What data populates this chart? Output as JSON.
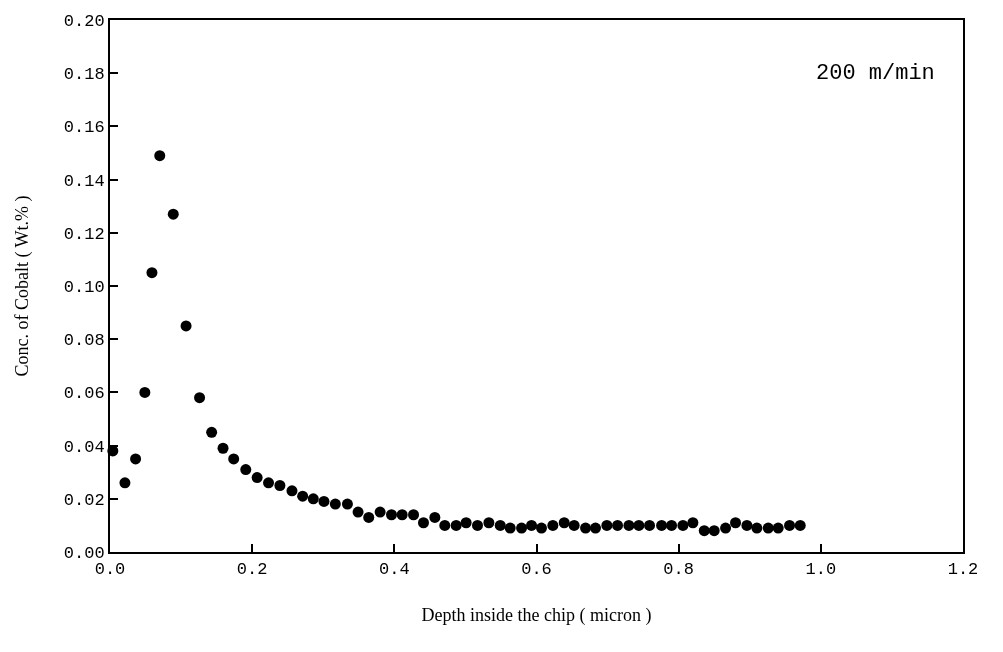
{
  "chart_data": {
    "type": "scatter",
    "xlabel": "Depth inside the chip ( micron )",
    "ylabel": "Conc. of Cobalt ( Wt.% )",
    "annotations": [
      "200 m/min"
    ],
    "x": [
      0.004,
      0.021,
      0.036,
      0.049,
      0.059,
      0.07,
      0.089,
      0.107,
      0.126,
      0.143,
      0.159,
      0.174,
      0.191,
      0.207,
      0.223,
      0.239,
      0.256,
      0.271,
      0.286,
      0.301,
      0.317,
      0.334,
      0.349,
      0.364,
      0.38,
      0.396,
      0.411,
      0.427,
      0.441,
      0.457,
      0.471,
      0.487,
      0.501,
      0.517,
      0.533,
      0.549,
      0.563,
      0.579,
      0.593,
      0.607,
      0.623,
      0.639,
      0.653,
      0.669,
      0.683,
      0.699,
      0.714,
      0.73,
      0.744,
      0.759,
      0.776,
      0.79,
      0.806,
      0.82,
      0.836,
      0.85,
      0.866,
      0.88,
      0.896,
      0.91,
      0.926,
      0.94,
      0.956,
      0.971
    ],
    "values": [
      0.038,
      0.026,
      0.035,
      0.06,
      0.105,
      0.149,
      0.127,
      0.085,
      0.058,
      0.045,
      0.039,
      0.035,
      0.031,
      0.028,
      0.026,
      0.025,
      0.023,
      0.021,
      0.02,
      0.019,
      0.018,
      0.018,
      0.015,
      0.013,
      0.015,
      0.014,
      0.014,
      0.014,
      0.011,
      0.013,
      0.01,
      0.01,
      0.011,
      0.01,
      0.011,
      0.01,
      0.009,
      0.009,
      0.01,
      0.009,
      0.01,
      0.011,
      0.01,
      0.009,
      0.009,
      0.01,
      0.01,
      0.01,
      0.01,
      0.01,
      0.01,
      0.01,
      0.01,
      0.011,
      0.008,
      0.008,
      0.009,
      0.011,
      0.01,
      0.009,
      0.009,
      0.009,
      0.01,
      0.01
    ],
    "color": "#000000",
    "marker": "circle",
    "xlim": [
      0,
      1.2
    ],
    "xticks": [
      {
        "value": 0,
        "label": "0.0"
      },
      {
        "value": 0.2,
        "label": "0.2"
      },
      {
        "value": 0.4,
        "label": "0.4"
      },
      {
        "value": 0.6,
        "label": "0.6"
      },
      {
        "value": 0.8,
        "label": "0.8"
      },
      {
        "value": 1.0,
        "label": "1.0"
      },
      {
        "value": 1.2,
        "label": "1.2"
      }
    ],
    "ylim": [
      0,
      0.2
    ],
    "yticks": [
      {
        "value": 0,
        "label": "0.00"
      },
      {
        "value": 0.02,
        "label": "0.02"
      },
      {
        "value": 0.04,
        "label": "0.04"
      },
      {
        "value": 0.06,
        "label": "0.06"
      },
      {
        "value": 0.08,
        "label": "0.08"
      },
      {
        "value": 0.1,
        "label": "0.10"
      },
      {
        "value": 0.12,
        "label": "0.12"
      },
      {
        "value": 0.14,
        "label": "0.14"
      },
      {
        "value": 0.16,
        "label": "0.16"
      },
      {
        "value": 0.18,
        "label": "0.18"
      },
      {
        "value": 0.2,
        "label": "0.20"
      }
    ],
    "legend": false
  }
}
